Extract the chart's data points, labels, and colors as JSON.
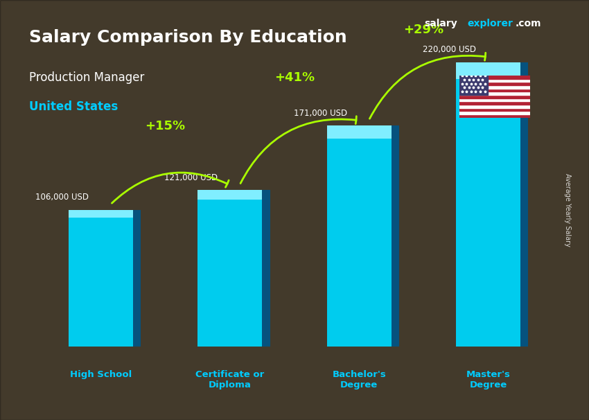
{
  "title_main": "Salary Comparison By Education",
  "subtitle": "Production Manager",
  "location": "United States",
  "watermark": "salaryexplorer.com",
  "categories": [
    "High School",
    "Certificate or\nDiploma",
    "Bachelor's\nDegree",
    "Master's\nDegree"
  ],
  "values": [
    106000,
    121000,
    171000,
    220000
  ],
  "value_labels": [
    "106,000 USD",
    "121,000 USD",
    "171,000 USD",
    "220,000 USD"
  ],
  "pct_changes": [
    "+15%",
    "+41%",
    "+29%"
  ],
  "bar_color_top": "#00d4ff",
  "bar_color_mid": "#00aadd",
  "bar_color_bottom": "#007ab8",
  "bar_color_edge": "#005f8e",
  "background_color": "#1a1a2e",
  "title_color": "#ffffff",
  "subtitle_color": "#ffffff",
  "location_color": "#00ccff",
  "value_label_color": "#ffffff",
  "pct_color": "#aaff00",
  "ylabel": "Average Yearly Salary",
  "ylim": [
    0,
    260000
  ],
  "bar_width": 0.5
}
